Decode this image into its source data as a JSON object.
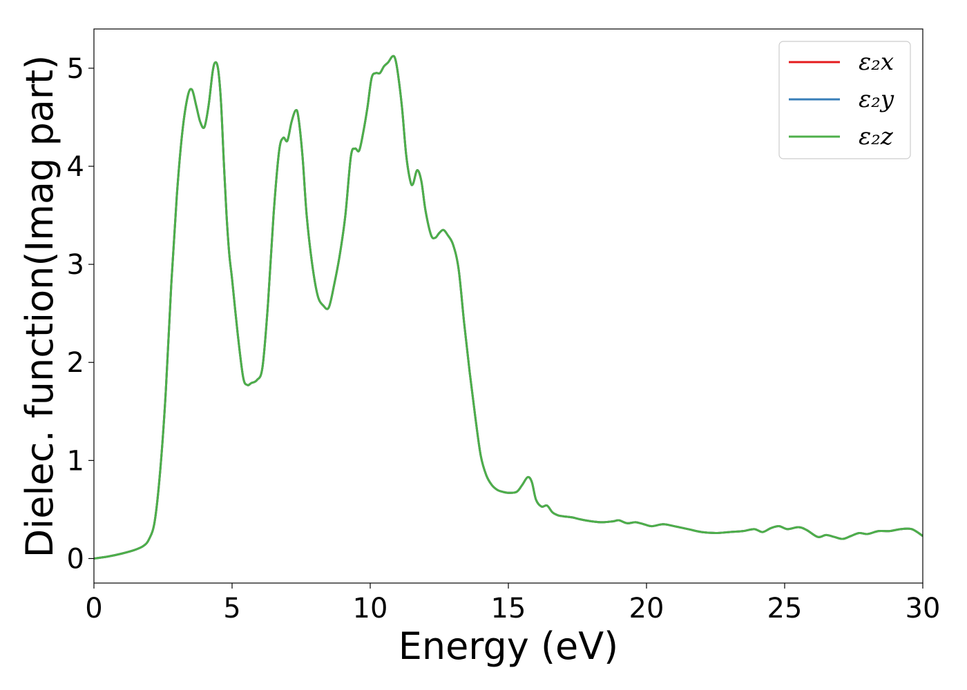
{
  "chart_data": {
    "type": "line",
    "xlabel": "Energy (eV)",
    "ylabel": "Dielec. function(Imag part)",
    "xlim": [
      0,
      30
    ],
    "ylim": [
      -0.25,
      5.4
    ],
    "xticks": [
      0,
      5,
      10,
      15,
      20,
      25,
      30
    ],
    "yticks": [
      0,
      1,
      2,
      3,
      4,
      5
    ],
    "grid": false,
    "legend_position": "top-right",
    "x": [
      0,
      0.5,
      1.0,
      1.5,
      1.8,
      2.0,
      2.2,
      2.4,
      2.6,
      2.8,
      3.0,
      3.2,
      3.4,
      3.55,
      3.7,
      3.85,
      4.0,
      4.15,
      4.3,
      4.4,
      4.5,
      4.6,
      4.7,
      4.8,
      4.9,
      5.0,
      5.2,
      5.4,
      5.55,
      5.7,
      5.9,
      6.1,
      6.3,
      6.5,
      6.7,
      6.85,
      7.0,
      7.15,
      7.3,
      7.4,
      7.55,
      7.7,
      7.9,
      8.1,
      8.3,
      8.5,
      8.7,
      8.9,
      9.1,
      9.3,
      9.45,
      9.6,
      9.75,
      9.9,
      10.05,
      10.2,
      10.35,
      10.5,
      10.65,
      10.8,
      10.9,
      11.0,
      11.15,
      11.3,
      11.45,
      11.55,
      11.7,
      11.85,
      12.0,
      12.2,
      12.35,
      12.5,
      12.65,
      12.8,
      13.0,
      13.2,
      13.4,
      13.6,
      13.8,
      14.0,
      14.2,
      14.4,
      14.6,
      14.8,
      15.0,
      15.3,
      15.5,
      15.7,
      15.85,
      16.0,
      16.2,
      16.4,
      16.6,
      16.8,
      17.0,
      17.3,
      17.6,
      18.0,
      18.4,
      18.8,
      19.0,
      19.3,
      19.6,
      19.9,
      20.2,
      20.6,
      21.0,
      21.5,
      22.0,
      22.5,
      23.0,
      23.5,
      23.9,
      24.2,
      24.5,
      24.8,
      25.1,
      25.5,
      25.8,
      26.2,
      26.5,
      26.8,
      27.1,
      27.4,
      27.7,
      28.0,
      28.4,
      28.8,
      29.2,
      29.6,
      30.0
    ],
    "series": [
      {
        "name": "ε₂x",
        "color": "#e41a1c",
        "y": [
          0,
          0.02,
          0.05,
          0.09,
          0.13,
          0.2,
          0.38,
          0.9,
          1.7,
          2.8,
          3.7,
          4.35,
          4.72,
          4.78,
          4.62,
          4.45,
          4.4,
          4.62,
          4.97,
          5.06,
          4.98,
          4.65,
          4.05,
          3.5,
          3.1,
          2.85,
          2.3,
          1.85,
          1.77,
          1.79,
          1.82,
          1.95,
          2.6,
          3.5,
          4.15,
          4.29,
          4.26,
          4.45,
          4.57,
          4.5,
          4.1,
          3.5,
          3.0,
          2.68,
          2.58,
          2.56,
          2.8,
          3.1,
          3.5,
          4.1,
          4.18,
          4.16,
          4.35,
          4.6,
          4.9,
          4.95,
          4.95,
          5.02,
          5.06,
          5.12,
          5.1,
          4.95,
          4.6,
          4.12,
          3.85,
          3.82,
          3.96,
          3.85,
          3.55,
          3.3,
          3.27,
          3.32,
          3.35,
          3.3,
          3.2,
          2.95,
          2.4,
          1.9,
          1.45,
          1.05,
          0.85,
          0.75,
          0.7,
          0.68,
          0.67,
          0.68,
          0.75,
          0.83,
          0.78,
          0.6,
          0.53,
          0.54,
          0.47,
          0.44,
          0.43,
          0.42,
          0.4,
          0.38,
          0.37,
          0.38,
          0.39,
          0.36,
          0.37,
          0.35,
          0.33,
          0.35,
          0.33,
          0.3,
          0.27,
          0.26,
          0.27,
          0.28,
          0.3,
          0.27,
          0.31,
          0.33,
          0.3,
          0.32,
          0.29,
          0.22,
          0.24,
          0.22,
          0.2,
          0.23,
          0.26,
          0.25,
          0.28,
          0.28,
          0.3,
          0.3,
          0.23
        ]
      },
      {
        "name": "ε₂y",
        "color": "#377eb8",
        "y": [
          0,
          0.02,
          0.05,
          0.09,
          0.13,
          0.2,
          0.38,
          0.9,
          1.7,
          2.8,
          3.7,
          4.35,
          4.72,
          4.78,
          4.62,
          4.45,
          4.4,
          4.62,
          4.97,
          5.06,
          4.98,
          4.65,
          4.05,
          3.5,
          3.1,
          2.85,
          2.3,
          1.85,
          1.77,
          1.79,
          1.82,
          1.95,
          2.6,
          3.5,
          4.15,
          4.29,
          4.26,
          4.45,
          4.57,
          4.5,
          4.1,
          3.5,
          3.0,
          2.68,
          2.58,
          2.56,
          2.8,
          3.1,
          3.5,
          4.1,
          4.18,
          4.16,
          4.35,
          4.6,
          4.9,
          4.95,
          4.95,
          5.02,
          5.06,
          5.12,
          5.1,
          4.95,
          4.6,
          4.12,
          3.85,
          3.82,
          3.96,
          3.85,
          3.55,
          3.3,
          3.27,
          3.32,
          3.35,
          3.3,
          3.2,
          2.95,
          2.4,
          1.9,
          1.45,
          1.05,
          0.85,
          0.75,
          0.7,
          0.68,
          0.67,
          0.68,
          0.75,
          0.83,
          0.78,
          0.6,
          0.53,
          0.54,
          0.47,
          0.44,
          0.43,
          0.42,
          0.4,
          0.38,
          0.37,
          0.38,
          0.39,
          0.36,
          0.37,
          0.35,
          0.33,
          0.35,
          0.33,
          0.3,
          0.27,
          0.26,
          0.27,
          0.28,
          0.3,
          0.27,
          0.31,
          0.33,
          0.3,
          0.32,
          0.29,
          0.22,
          0.24,
          0.22,
          0.2,
          0.23,
          0.26,
          0.25,
          0.28,
          0.28,
          0.3,
          0.3,
          0.23
        ]
      },
      {
        "name": "ε₂z",
        "color": "#4daf4a",
        "y": [
          0,
          0.02,
          0.05,
          0.09,
          0.13,
          0.2,
          0.38,
          0.9,
          1.7,
          2.8,
          3.7,
          4.35,
          4.72,
          4.78,
          4.62,
          4.45,
          4.4,
          4.62,
          4.97,
          5.06,
          4.98,
          4.65,
          4.05,
          3.5,
          3.1,
          2.85,
          2.3,
          1.85,
          1.77,
          1.79,
          1.82,
          1.95,
          2.6,
          3.5,
          4.15,
          4.29,
          4.26,
          4.45,
          4.57,
          4.5,
          4.1,
          3.5,
          3.0,
          2.68,
          2.58,
          2.56,
          2.8,
          3.1,
          3.5,
          4.1,
          4.18,
          4.16,
          4.35,
          4.6,
          4.9,
          4.95,
          4.95,
          5.02,
          5.06,
          5.12,
          5.1,
          4.95,
          4.6,
          4.12,
          3.85,
          3.82,
          3.96,
          3.85,
          3.55,
          3.3,
          3.27,
          3.32,
          3.35,
          3.3,
          3.2,
          2.95,
          2.4,
          1.9,
          1.45,
          1.05,
          0.85,
          0.75,
          0.7,
          0.68,
          0.67,
          0.68,
          0.75,
          0.83,
          0.78,
          0.6,
          0.53,
          0.54,
          0.47,
          0.44,
          0.43,
          0.42,
          0.4,
          0.38,
          0.37,
          0.38,
          0.39,
          0.36,
          0.37,
          0.35,
          0.33,
          0.35,
          0.33,
          0.3,
          0.27,
          0.26,
          0.27,
          0.28,
          0.3,
          0.27,
          0.31,
          0.33,
          0.3,
          0.32,
          0.29,
          0.22,
          0.24,
          0.22,
          0.2,
          0.23,
          0.26,
          0.25,
          0.28,
          0.28,
          0.3,
          0.3,
          0.23
        ]
      }
    ]
  }
}
